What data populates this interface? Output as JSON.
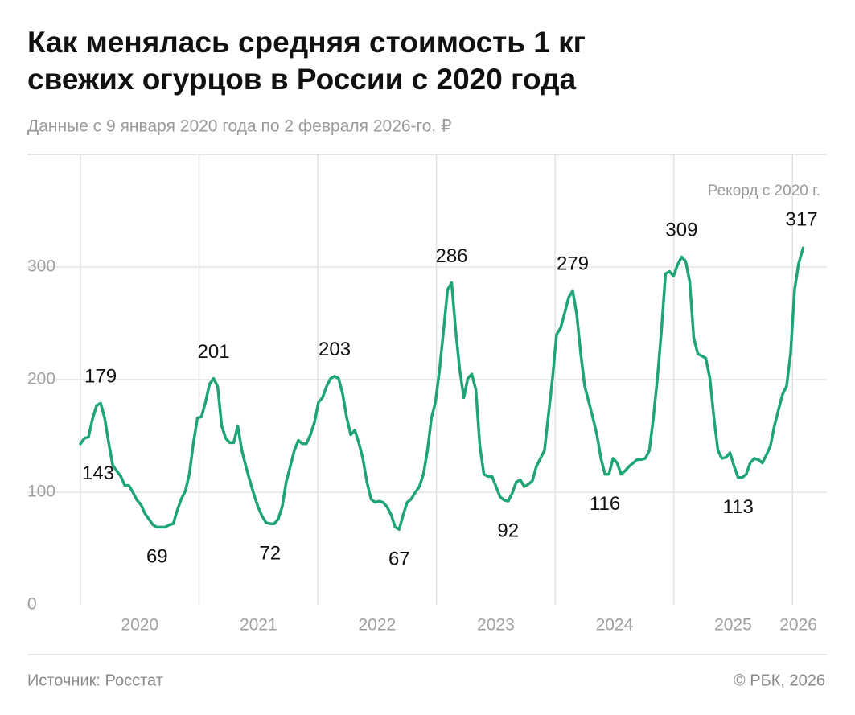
{
  "chart_data": {
    "type": "line",
    "title": "Как менялась средняя стоимость 1 кг свежих огурцов в России с 2020 года",
    "subtitle": "Данные с 9 января 2020 года по 2 февраля 2026-го, ₽",
    "annotation": "Рекорд с 2020 г.",
    "source": "Источник: Росстат",
    "copyright": "© РБК, 2026",
    "x": [
      2020,
      2020.034,
      2020.068,
      2020.102,
      2020.136,
      2020.17,
      2020.204,
      2020.238,
      2020.272,
      2020.306,
      2020.34,
      2020.374,
      2020.408,
      2020.442,
      2020.476,
      2020.51,
      2020.544,
      2020.578,
      2020.612,
      2020.646,
      2020.68,
      2020.714,
      2020.748,
      2020.782,
      2020.816,
      2020.85,
      2020.884,
      2020.918,
      2020.952,
      2020.986,
      2021.02,
      2021.054,
      2021.088,
      2021.122,
      2021.156,
      2021.19,
      2021.224,
      2021.258,
      2021.292,
      2021.326,
      2021.36,
      2021.394,
      2021.428,
      2021.462,
      2021.496,
      2021.53,
      2021.564,
      2021.598,
      2021.632,
      2021.666,
      2021.7,
      2021.734,
      2021.768,
      2021.802,
      2021.836,
      2021.87,
      2021.904,
      2021.938,
      2021.972,
      2022.006,
      2022.04,
      2022.074,
      2022.108,
      2022.142,
      2022.176,
      2022.21,
      2022.244,
      2022.278,
      2022.312,
      2022.346,
      2022.38,
      2022.414,
      2022.448,
      2022.482,
      2022.516,
      2022.55,
      2022.584,
      2022.618,
      2022.652,
      2022.686,
      2022.72,
      2022.754,
      2022.788,
      2022.822,
      2022.856,
      2022.89,
      2022.924,
      2022.958,
      2022.992,
      2023.026,
      2023.06,
      2023.094,
      2023.128,
      2023.162,
      2023.196,
      2023.23,
      2023.264,
      2023.298,
      2023.332,
      2023.366,
      2023.4,
      2023.434,
      2023.468,
      2023.502,
      2023.536,
      2023.57,
      2023.604,
      2023.638,
      2023.672,
      2023.706,
      2023.74,
      2023.774,
      2023.808,
      2023.842,
      2023.876,
      2023.91,
      2023.944,
      2023.978,
      2024.012,
      2024.046,
      2024.08,
      2024.114,
      2024.148,
      2024.182,
      2024.216,
      2024.25,
      2024.284,
      2024.318,
      2024.352,
      2024.386,
      2024.42,
      2024.454,
      2024.488,
      2024.522,
      2024.556,
      2024.59,
      2024.624,
      2024.658,
      2024.692,
      2024.726,
      2024.76,
      2024.794,
      2024.828,
      2024.862,
      2024.896,
      2024.93,
      2024.964,
      2024.998,
      2025.032,
      2025.066,
      2025.1,
      2025.134,
      2025.168,
      2025.202,
      2025.236,
      2025.27,
      2025.304,
      2025.338,
      2025.372,
      2025.406,
      2025.44,
      2025.474,
      2025.508,
      2025.542,
      2025.576,
      2025.61,
      2025.644,
      2025.678,
      2025.712,
      2025.746,
      2025.78,
      2025.814,
      2025.848,
      2025.882,
      2025.916,
      2025.95,
      2025.984,
      2026.018,
      2026.052,
      2026.09
    ],
    "series": [
      {
        "color": "#1fa574",
        "values": [
          143,
          148,
          149,
          165,
          177,
          179,
          166,
          144,
          124,
          119,
          114,
          106,
          106,
          100,
          93,
          89,
          81,
          76,
          71,
          69,
          69,
          69,
          71,
          72,
          84,
          94,
          101,
          116,
          144,
          166,
          167,
          180,
          196,
          201,
          194,
          159,
          148,
          144,
          144,
          159,
          137,
          123,
          110,
          98,
          87,
          79,
          73,
          72,
          72,
          76,
          87,
          109,
          123,
          137,
          146,
          143,
          143,
          151,
          162,
          180,
          184,
          194,
          201,
          203,
          201,
          187,
          166,
          151,
          155,
          144,
          130,
          109,
          94,
          91,
          92,
          91,
          87,
          80,
          69,
          67,
          80,
          91,
          94,
          100,
          105,
          116,
          137,
          166,
          180,
          209,
          244,
          280,
          286,
          244,
          209,
          184,
          201,
          205,
          191,
          141,
          116,
          114,
          114,
          105,
          96,
          93,
          92,
          99,
          109,
          111,
          105,
          107,
          110,
          123,
          130,
          137,
          169,
          201,
          240,
          246,
          259,
          273,
          279,
          258,
          223,
          194,
          180,
          166,
          151,
          130,
          116,
          116,
          130,
          126,
          116,
          119,
          123,
          126,
          129,
          129,
          130,
          137,
          166,
          201,
          244,
          294,
          296,
          292,
          302,
          309,
          305,
          287,
          237,
          223,
          221,
          219,
          201,
          166,
          137,
          130,
          131,
          135,
          123,
          113,
          113,
          116,
          126,
          130,
          129,
          126,
          133,
          141,
          159,
          173,
          187,
          194,
          223,
          280,
          303,
          317
        ]
      }
    ],
    "labeled_points": [
      0,
      5,
      19,
      33,
      47,
      63,
      79,
      92,
      106,
      122,
      130,
      149,
      163,
      179
    ],
    "xlim": [
      2020,
      2026.1
    ],
    "xticks": [
      2020,
      2021,
      2022,
      2023,
      2024,
      2025,
      2026
    ],
    "ylim": [
      0,
      400
    ],
    "yticks": [
      0,
      100,
      200,
      300
    ],
    "grid": true
  }
}
